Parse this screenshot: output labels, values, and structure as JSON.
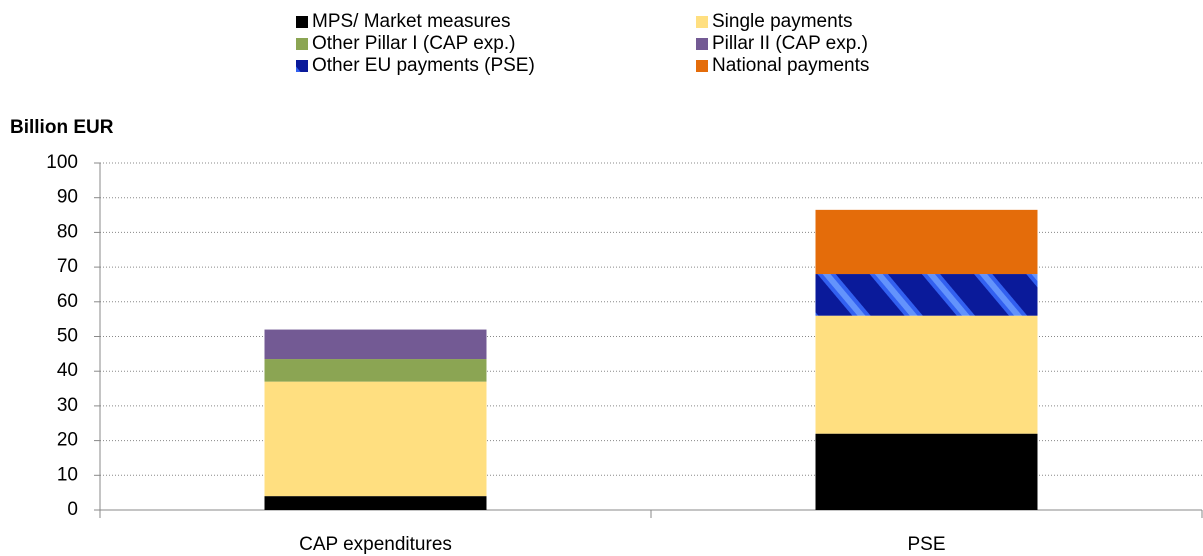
{
  "chart_data": {
    "type": "stacked_bar",
    "y_label": "Billion EUR",
    "categories": [
      "CAP expenditures",
      "PSE"
    ],
    "series": [
      {
        "name": "MPS/ Market measures",
        "color": "#000000",
        "values": [
          4,
          22
        ]
      },
      {
        "name": "Single payments",
        "color": "#ffdf80",
        "values": [
          33,
          34
        ]
      },
      {
        "name": "Other Pillar I (CAP exp.)",
        "color": "#8ba553",
        "values": [
          6.5,
          0
        ]
      },
      {
        "name": "Pillar II (CAP exp.)",
        "color": "#735a94",
        "values": [
          8.5,
          0
        ]
      },
      {
        "name": "Other EU payments (PSE)",
        "color": "#1a2fd6",
        "values": [
          0,
          12
        ]
      },
      {
        "name": "National payments",
        "color": "#e46c0a",
        "values": [
          0,
          18.5
        ]
      }
    ],
    "ylim": [
      0,
      100
    ],
    "yticks": [
      0,
      10,
      20,
      30,
      40,
      50,
      60,
      70,
      80,
      90,
      100
    ],
    "grid": true,
    "legend": "top"
  }
}
